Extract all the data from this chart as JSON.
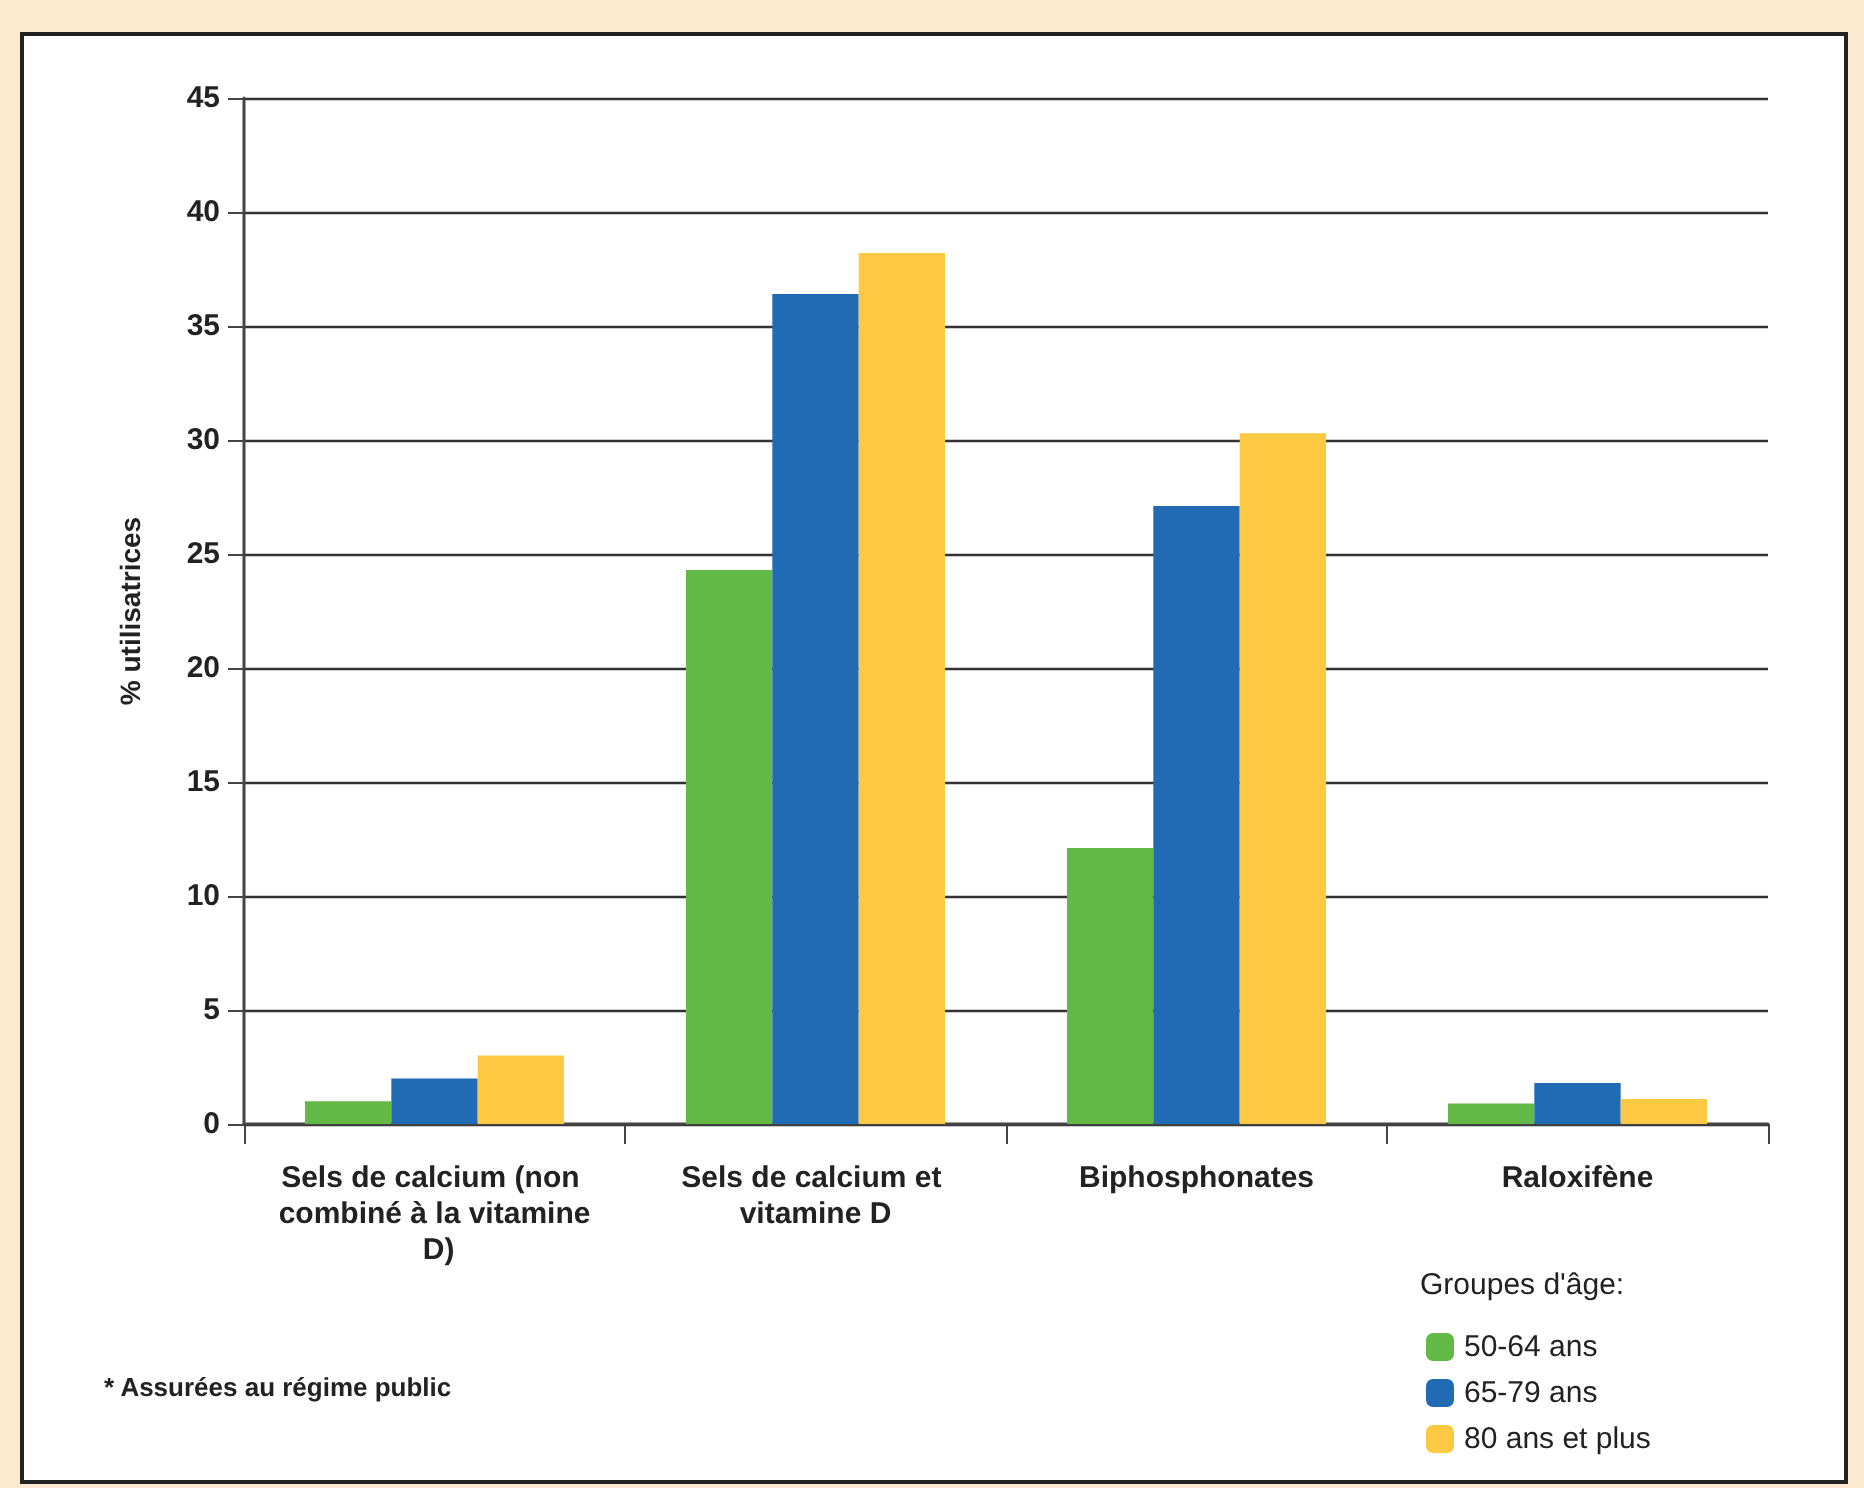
{
  "chart_data": {
    "type": "bar",
    "ylabel": "% utilisatrices",
    "legend_title": "Groupes d'âge:",
    "annotations": [
      "* Assurées au régime public"
    ],
    "categories": [
      "Sels de calcium (non combiné à la vitamine D)",
      "Sels de calcium et vitamine D",
      "Biphosphonates",
      "Raloxifène"
    ],
    "series": [
      {
        "name": "50-64 ans",
        "color": "#62b946",
        "values": [
          1.0,
          24.3,
          12.1,
          0.9
        ]
      },
      {
        "name": "65-79 ans",
        "color": "#206bb3",
        "values": [
          2.0,
          36.4,
          27.1,
          1.8
        ]
      },
      {
        "name": "80 ans et plus",
        "color": "#fdc942",
        "values": [
          3.0,
          38.2,
          30.3,
          1.1
        ]
      }
    ],
    "ylim": [
      0,
      45
    ],
    "yticks": [
      0,
      5,
      10,
      15,
      20,
      25,
      30,
      35,
      40,
      45
    ],
    "grid": "y",
    "legend": "bottom right"
  }
}
